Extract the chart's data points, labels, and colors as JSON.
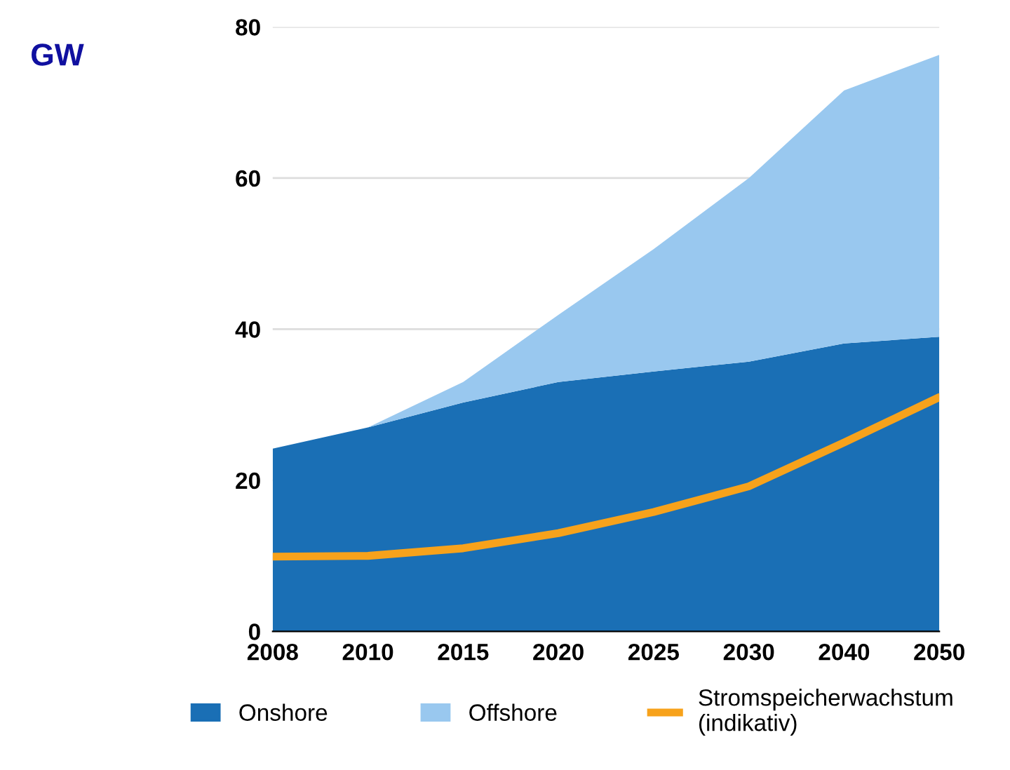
{
  "chart_data": {
    "type": "area",
    "stacked": true,
    "ylabel": "GW",
    "categories": [
      "2008",
      "2010",
      "2015",
      "2020",
      "2025",
      "2030",
      "2040",
      "2050"
    ],
    "series": [
      {
        "name": "Onshore",
        "color": "#1a6fb5",
        "values": [
          24.2,
          27,
          30.3,
          33,
          34.4,
          35.7,
          38.1,
          39
        ]
      },
      {
        "name": "Offshore",
        "color": "#99c8ef",
        "values": [
          0,
          0,
          2.7,
          8.9,
          16.2,
          24.3,
          33.5,
          37.3
        ]
      },
      {
        "name": "Stromspeicherwachstum\n(indikativ)",
        "type": "line",
        "color": "#f7a21b",
        "values": [
          9.9,
          10,
          11,
          13,
          15.8,
          19.2,
          25,
          31
        ]
      }
    ],
    "ylim": [
      0,
      80
    ],
    "yticks": [
      0,
      20,
      40,
      60,
      80
    ],
    "grid": "y",
    "legend": "bottom"
  }
}
